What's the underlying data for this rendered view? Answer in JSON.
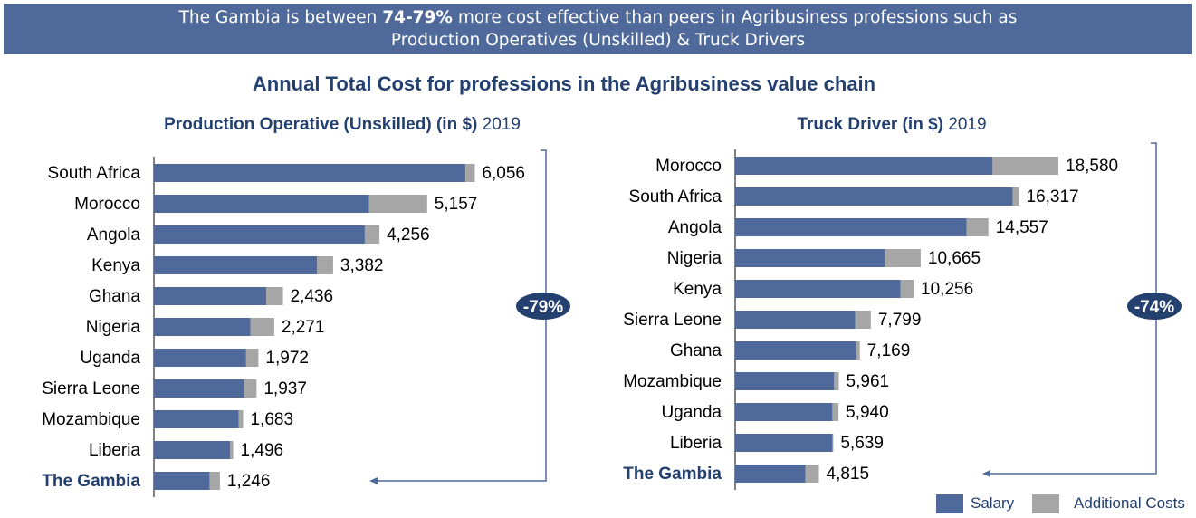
{
  "banner": {
    "line1_pre": "The Gambia is between ",
    "line1_bold": "74-79%",
    "line1_post": " more cost effective than peers in Agribusiness professions such as",
    "line2": "Production Operatives (Unskilled) & Truck Drivers"
  },
  "main_title": "Annual Total Cost for professions in the Agribusiness value chain",
  "colors": {
    "salary": "#4f6a9a",
    "additional": "#a6a6a6",
    "navy": "#23406f",
    "arrow": "#4f6a9a"
  },
  "legend": {
    "salary": "Salary",
    "additional": "Additional Costs"
  },
  "chart_data": [
    {
      "type": "bar",
      "orientation": "horizontal",
      "stacked": true,
      "title": "Production Operative (Unskilled) (in $)",
      "title_year": "2019",
      "categories": [
        "South Africa",
        "Morocco",
        "Angola",
        "Kenya",
        "Ghana",
        "Nigeria",
        "Uganda",
        "Sierra Leone",
        "Mozambique",
        "Liberia",
        "The Gambia"
      ],
      "highlight": "The Gambia",
      "series": [
        {
          "name": "Salary",
          "values": [
            5880,
            4060,
            3980,
            3080,
            2120,
            1820,
            1740,
            1700,
            1600,
            1440,
            1050
          ]
        },
        {
          "name": "Additional Costs",
          "values": [
            176,
            1097,
            276,
            302,
            316,
            451,
            232,
            237,
            83,
            56,
            196
          ]
        }
      ],
      "totals": [
        "6,056",
        "5,157",
        "4,256",
        "3,382",
        "2,436",
        "2,271",
        "1,972",
        "1,937",
        "1,683",
        "1,496",
        "1,246"
      ],
      "xlim": [
        0,
        6100
      ],
      "annotation": "-79%"
    },
    {
      "type": "bar",
      "orientation": "horizontal",
      "stacked": true,
      "title": "Truck Driver (in $)",
      "title_year": "2019",
      "categories": [
        "Morocco",
        "South Africa",
        "Angola",
        "Nigeria",
        "Kenya",
        "Sierra Leone",
        "Ghana",
        "Mozambique",
        "Uganda",
        "Liberia",
        "The Gambia"
      ],
      "highlight": "The Gambia",
      "series": [
        {
          "name": "Salary",
          "values": [
            14800,
            15950,
            13310,
            8610,
            9510,
            6910,
            6940,
            5690,
            5590,
            5590,
            4040
          ]
        },
        {
          "name": "Additional Costs",
          "values": [
            3780,
            367,
            1247,
            2055,
            746,
            889,
            229,
            271,
            350,
            49,
            775
          ]
        }
      ],
      "totals": [
        "18,580",
        "16,317",
        "14,557",
        "10,665",
        "10,256",
        "7,799",
        "7,169",
        "5,961",
        "5,940",
        "5,639",
        "4,815"
      ],
      "xlim": [
        0,
        18580
      ],
      "annotation": "-74%"
    }
  ]
}
